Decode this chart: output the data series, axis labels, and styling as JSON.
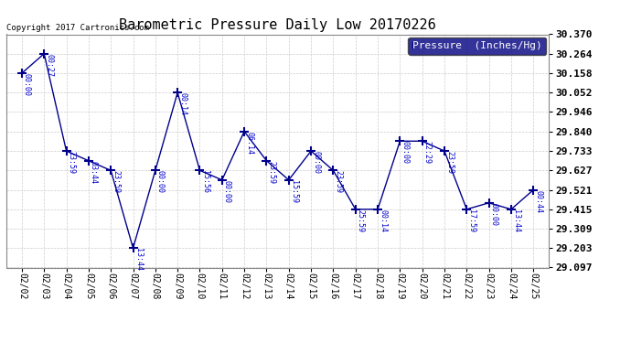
{
  "title": "Barometric Pressure Daily Low 20170226",
  "copyright": "Copyright 2017 Cartronics.com",
  "legend_label": "Pressure  (Inches/Hg)",
  "x_labels": [
    "02/02",
    "02/03",
    "02/04",
    "02/05",
    "02/06",
    "02/07",
    "02/08",
    "02/09",
    "02/10",
    "02/11",
    "02/12",
    "02/13",
    "02/14",
    "02/15",
    "02/16",
    "02/17",
    "02/18",
    "02/19",
    "02/20",
    "02/21",
    "02/22",
    "02/23",
    "02/24",
    "02/25"
  ],
  "y_values": [
    30.158,
    30.264,
    29.733,
    29.68,
    29.627,
    29.203,
    29.627,
    30.052,
    29.627,
    29.575,
    29.84,
    29.68,
    29.575,
    29.733,
    29.627,
    29.415,
    29.415,
    29.787,
    29.787,
    29.733,
    29.415,
    29.45,
    29.415,
    29.521
  ],
  "point_labels": [
    "00:00",
    "00:27",
    "23:59",
    "03:44",
    "23:59",
    "13:44",
    "00:00",
    "00:14",
    "15:56",
    "00:00",
    "06:14",
    "23:59",
    "15:59",
    "00:00",
    "23:59",
    "25:59",
    "00:14",
    "00:00",
    "22:29",
    "23:59",
    "17:59",
    "00:00",
    "13:44",
    "00:44"
  ],
  "ylim_min": 29.097,
  "ylim_max": 30.37,
  "ytick_values": [
    29.097,
    29.203,
    29.309,
    29.415,
    29.521,
    29.627,
    29.733,
    29.84,
    29.946,
    30.052,
    30.158,
    30.264,
    30.37
  ],
  "line_color": "#00008b",
  "grid_color": "#cccccc",
  "bg_color": "#ffffff",
  "title_color": "#000000",
  "point_label_color": "#0000cc",
  "legend_bg_color": "#000080",
  "legend_text_color": "#ffffff",
  "copyright_color": "#000000",
  "title_fontsize": 11,
  "tick_fontsize": 7,
  "ytick_fontsize": 8,
  "point_label_fontsize": 6,
  "legend_fontsize": 8,
  "copyright_fontsize": 6.5
}
